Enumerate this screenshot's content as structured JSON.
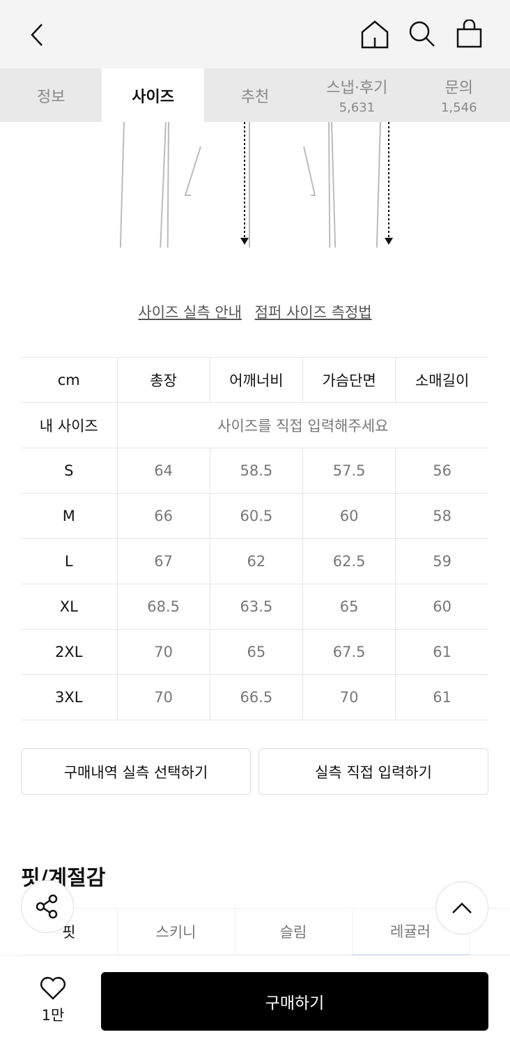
{
  "header": {
    "icons": [
      "back-icon",
      "home-icon",
      "search-icon",
      "cart-icon"
    ]
  },
  "tabs": [
    {
      "label": "정보"
    },
    {
      "label": "사이즈",
      "active": true
    },
    {
      "label": "추천"
    },
    {
      "label": "스냅·후기",
      "count": "5,631"
    },
    {
      "label": "문의",
      "count": "1,546"
    }
  ],
  "links": {
    "guide": "사이즈 실측 안내",
    "method": "점퍼 사이즈 측정법"
  },
  "size_table": {
    "headers": [
      "cm",
      "총장",
      "어깨너비",
      "가슴단면",
      "소매길이"
    ],
    "my_size": {
      "label": "내 사이즈",
      "placeholder": "사이즈를 직접 입력해주세요"
    },
    "rows": [
      [
        "S",
        "64",
        "58.5",
        "57.5",
        "56"
      ],
      [
        "M",
        "66",
        "60.5",
        "60",
        "58"
      ],
      [
        "L",
        "67",
        "62",
        "62.5",
        "59"
      ],
      [
        "XL",
        "68.5",
        "63.5",
        "65",
        "60"
      ],
      [
        "2XL",
        "70",
        "65",
        "67.5",
        "61"
      ],
      [
        "3XL",
        "70",
        "66.5",
        "70",
        "61"
      ]
    ]
  },
  "buttons": {
    "history": "구매내역 실측 선택하기",
    "manual": "실측 직접 입력하기"
  },
  "fit": {
    "title": "핏/계절감",
    "row_label": "핏",
    "options": [
      "스키니",
      "슬림",
      "레귤러"
    ],
    "selected": "레귤러"
  },
  "bottom": {
    "likes": "1만",
    "buy": "구매하기"
  }
}
